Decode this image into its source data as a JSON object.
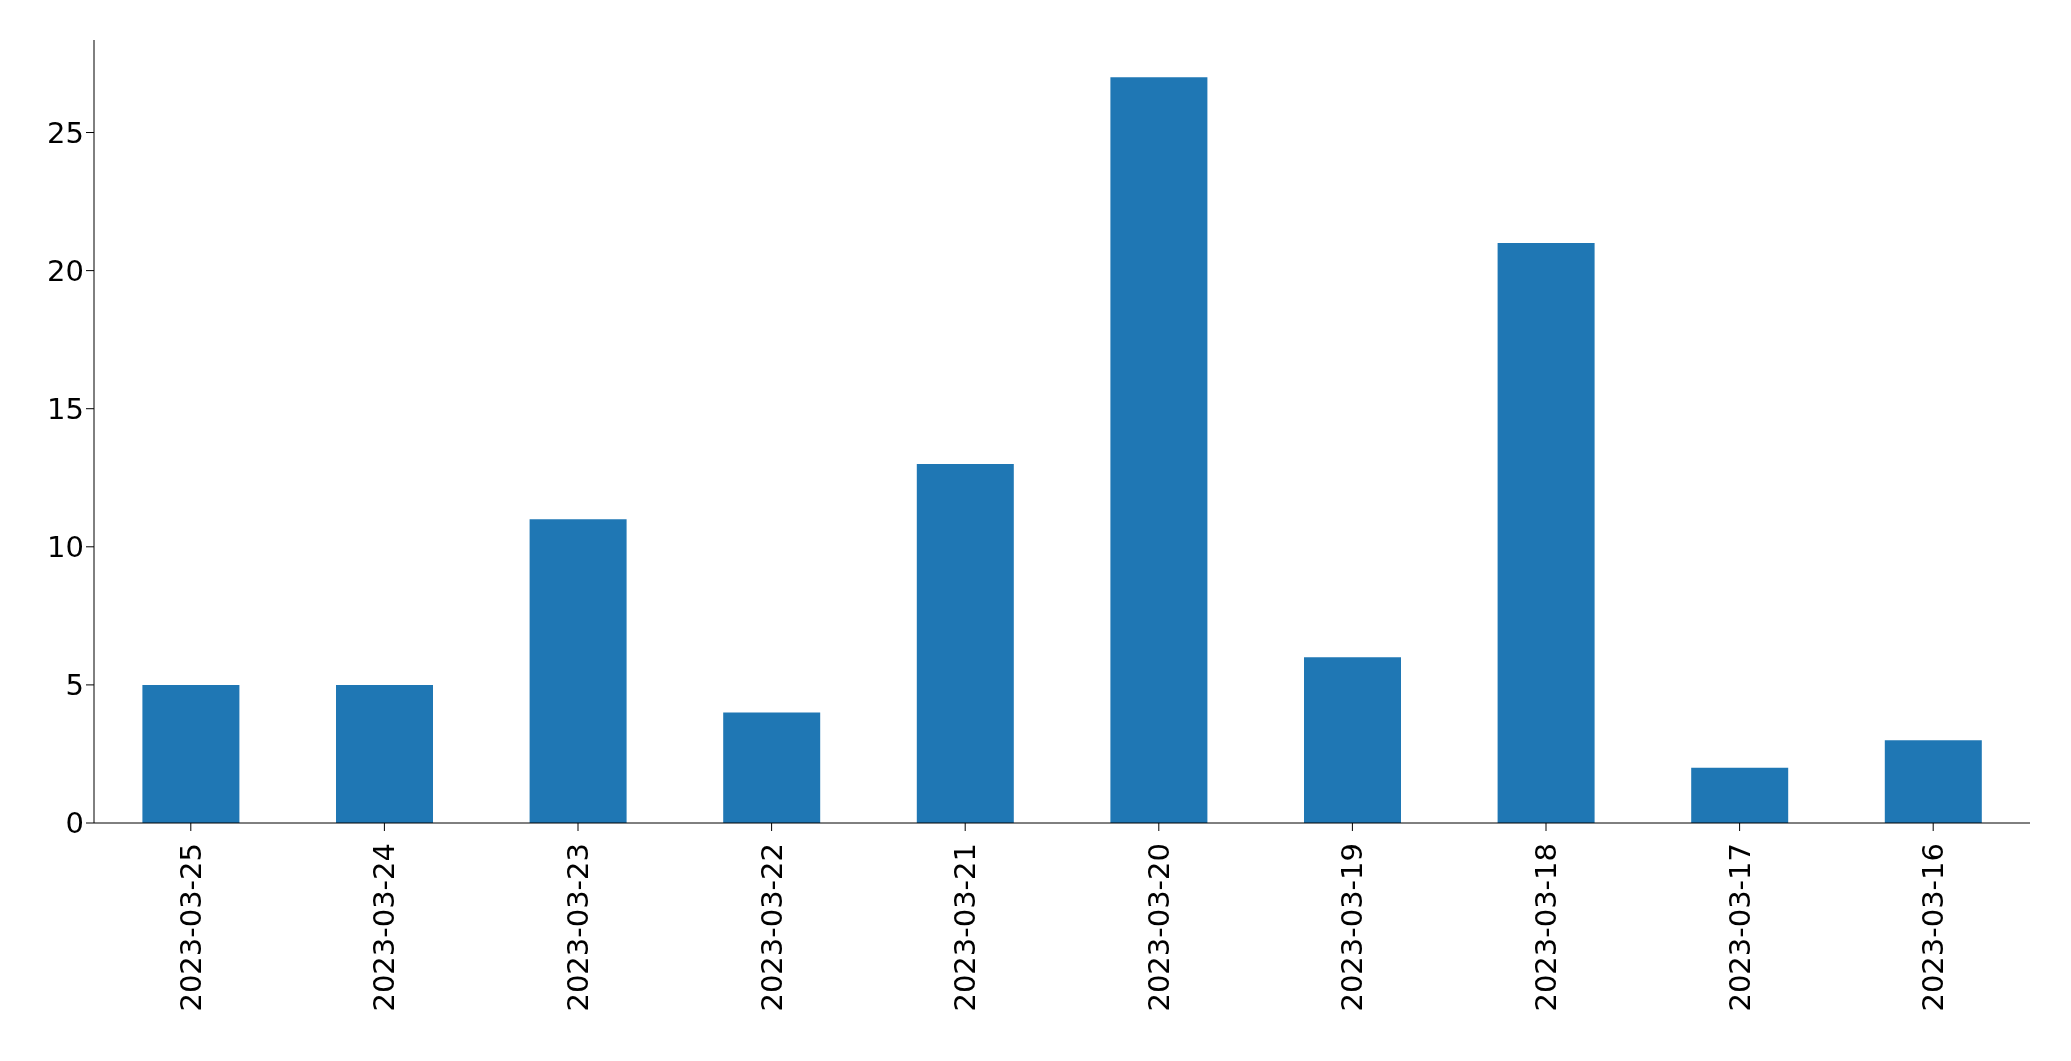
{
  "chart_data": {
    "type": "bar",
    "categories": [
      "2023-03-25",
      "2023-03-24",
      "2023-03-23",
      "2023-03-22",
      "2023-03-21",
      "2023-03-20",
      "2023-03-19",
      "2023-03-18",
      "2023-03-17",
      "2023-03-16"
    ],
    "values": [
      5,
      5,
      11,
      4,
      13,
      27,
      6,
      21,
      2,
      3
    ],
    "color": "#1f77b4",
    "ylim": [
      0,
      28.35
    ],
    "yticks": [
      0,
      5,
      10,
      15,
      20,
      25
    ],
    "grid": false,
    "legend": false
  }
}
